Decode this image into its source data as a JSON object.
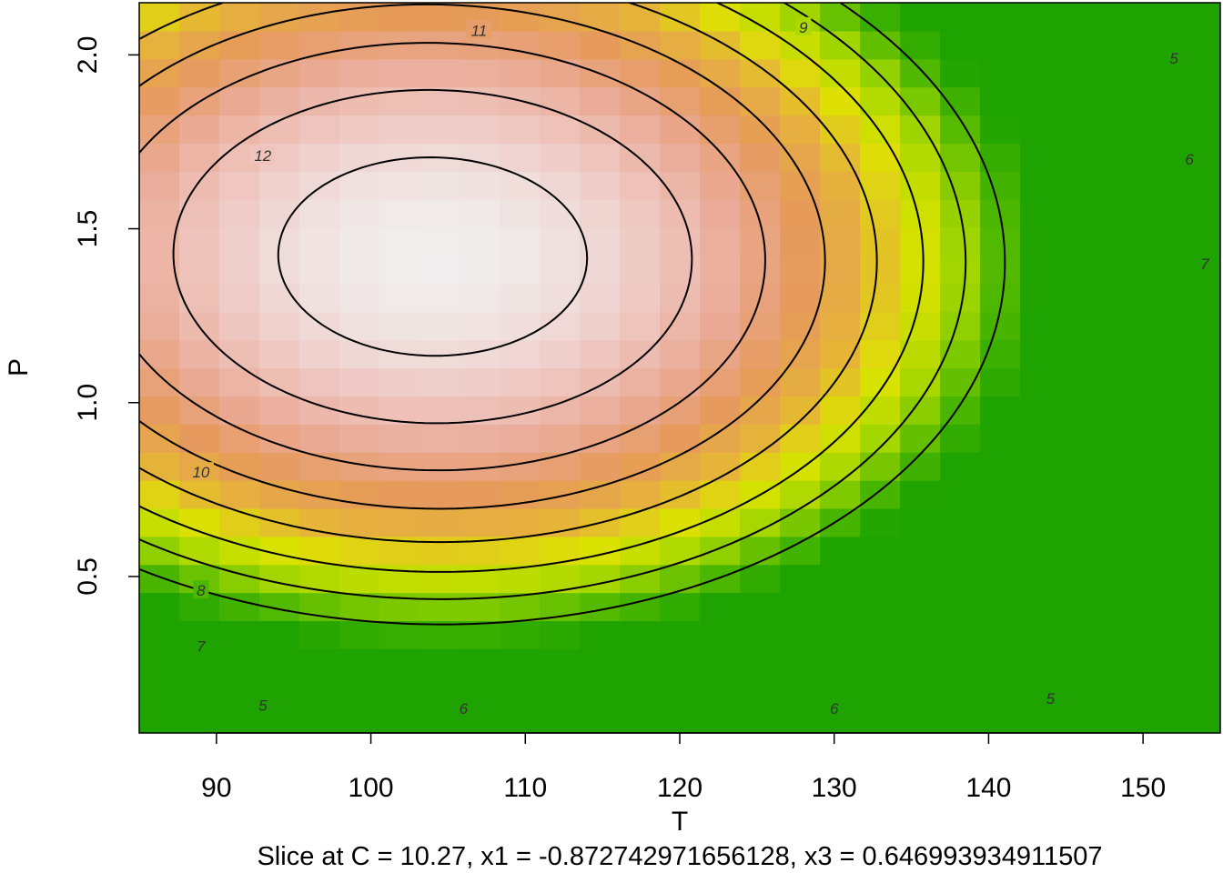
{
  "chart_data": {
    "type": "heatmap",
    "subtype": "response-surface contour plot",
    "xlabel": "T",
    "ylabel": "P",
    "subtitle": "Slice at C = 10.27, x1 = -0.872742971656128, x3 = 0.646993934911507",
    "xlim": [
      85,
      155
    ],
    "ylim": [
      0.05,
      2.15
    ],
    "x_ticks": [
      90,
      100,
      110,
      120,
      130,
      140,
      150
    ],
    "x_tick_labels": [
      "90",
      "100",
      "110",
      "120",
      "130",
      "140",
      "150"
    ],
    "y_ticks": [
      0.5,
      1.0,
      1.5,
      2.0
    ],
    "y_tick_labels": [
      "0.5",
      "1.0",
      "1.5",
      "2.0"
    ],
    "surface": {
      "form": "quadratic",
      "max_value": 12.55,
      "max_at": {
        "T": 104,
        "P": 1.42
      },
      "grid": {
        "nx": 27,
        "ny": 26
      },
      "color_scale": "terrain: green (low) - yellow - orange - pink - white (high)",
      "color_stops": [
        "#1ea300",
        "#4fb800",
        "#a2d600",
        "#dde300",
        "#e6b33a",
        "#e69a5c",
        "#eaaa96",
        "#efcac5",
        "#f0f0f0"
      ]
    },
    "contour_levels": [
      5,
      6,
      7,
      8,
      9,
      10,
      11,
      12
    ],
    "contour_labels": [
      {
        "text": "5",
        "T": 93,
        "P": 0.13
      },
      {
        "text": "6",
        "T": 106,
        "P": 0.12
      },
      {
        "text": "6",
        "T": 130,
        "P": 0.12
      },
      {
        "text": "5",
        "T": 144,
        "P": 0.15
      },
      {
        "text": "7",
        "T": 89,
        "P": 0.3
      },
      {
        "text": "8",
        "T": 89,
        "P": 0.46
      },
      {
        "text": "10",
        "T": 89,
        "P": 0.8
      },
      {
        "text": "11",
        "T": 107,
        "P": 2.07
      },
      {
        "text": "12",
        "T": 93,
        "P": 1.71
      },
      {
        "text": "9",
        "T": 128,
        "P": 2.08
      },
      {
        "text": "5",
        "T": 152,
        "P": 1.99
      },
      {
        "text": "6",
        "T": 153,
        "P": 1.7
      },
      {
        "text": "7",
        "T": 154,
        "P": 1.4
      }
    ]
  }
}
